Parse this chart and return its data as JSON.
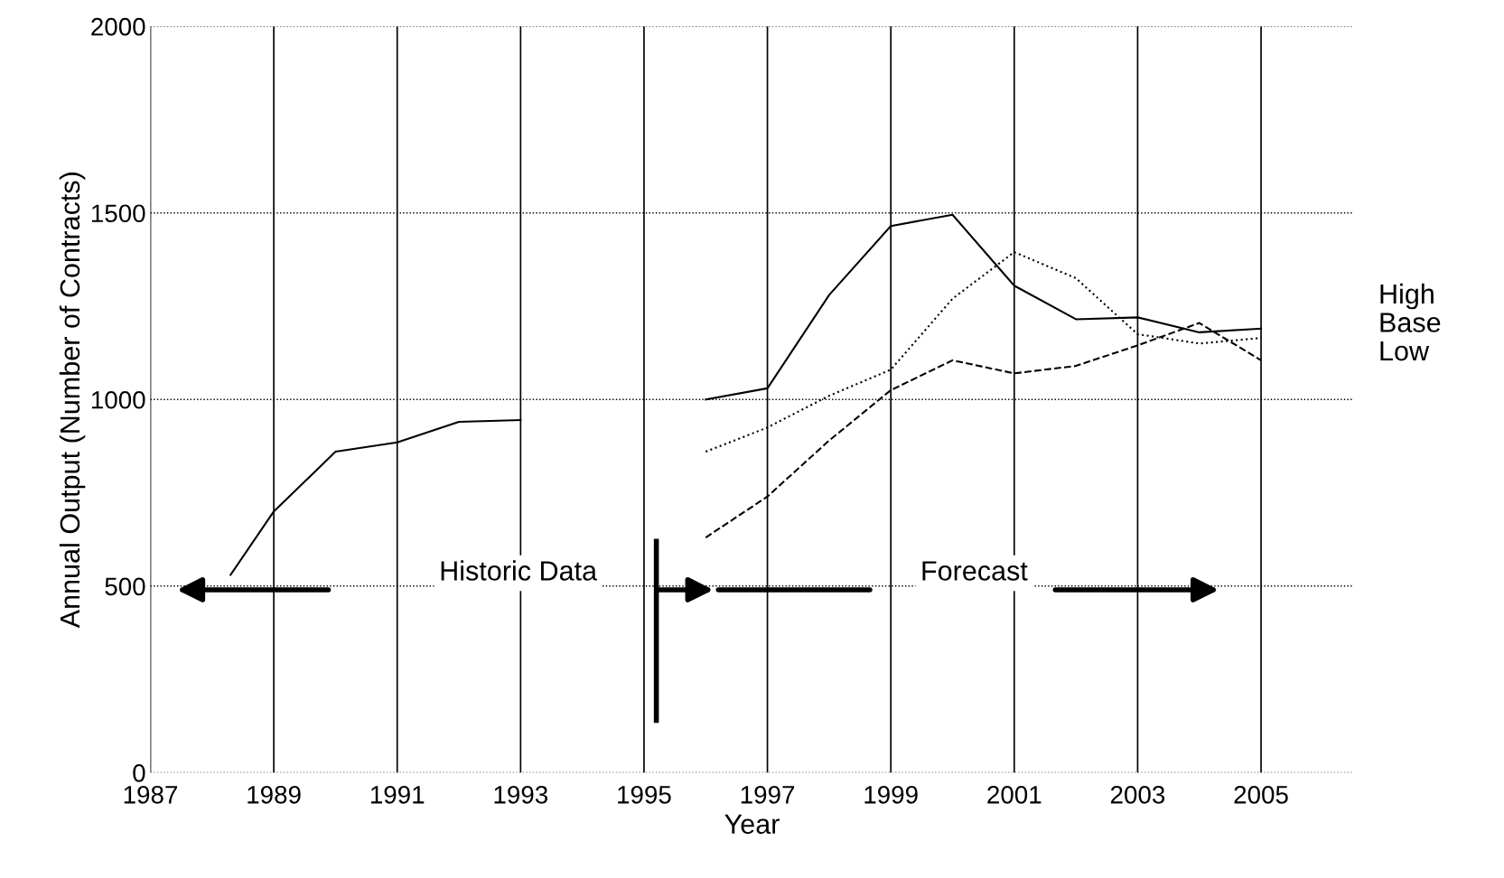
{
  "chart_data": {
    "type": "line",
    "xlabel": "Year",
    "ylabel": "Annual Output (Number of Contracts)",
    "xlim": [
      1987,
      2006.5
    ],
    "xticks": [
      1987,
      1989,
      1991,
      1993,
      1995,
      1997,
      1999,
      2001,
      2003,
      2005
    ],
    "ylim": [
      0,
      2000
    ],
    "yticks": [
      0,
      500,
      1000,
      1500,
      2000
    ],
    "grid": true,
    "legend": "right",
    "series": [
      {
        "color": "#000000",
        "line_style": "solid",
        "x": [
          1988.3,
          1989,
          1990,
          1991,
          1992,
          1993
        ],
        "values": [
          530,
          700,
          860,
          885,
          940,
          945
        ]
      },
      {
        "name": "High",
        "color": "#000000",
        "line_style": "solid",
        "x": [
          1996,
          1997,
          1998,
          1999,
          2000,
          2001,
          2002,
          2003,
          2004,
          2005
        ],
        "values": [
          1000,
          1030,
          1280,
          1465,
          1495,
          1305,
          1215,
          1220,
          1180,
          1190
        ]
      },
      {
        "name": "Base",
        "color": "#000000",
        "line_style": "dotted",
        "x": [
          1996,
          1997,
          1998,
          1999,
          2000,
          2001,
          2002,
          2003,
          2004,
          2005
        ],
        "values": [
          860,
          925,
          1010,
          1080,
          1270,
          1395,
          1325,
          1175,
          1150,
          1165
        ]
      },
      {
        "name": "Low",
        "color": "#000000",
        "line_style": "dashed",
        "x": [
          1996,
          1997,
          1998,
          1999,
          2000,
          2001,
          2002,
          2003,
          2004,
          2005
        ],
        "values": [
          630,
          740,
          890,
          1025,
          1105,
          1070,
          1090,
          1145,
          1205,
          1105
        ]
      }
    ],
    "ref_lines": [
      {
        "axis": "x",
        "value": 1995.2,
        "color": "#000000",
        "line_style": "solid"
      }
    ],
    "annotations": [
      "Historic Data",
      "Forecast"
    ]
  }
}
